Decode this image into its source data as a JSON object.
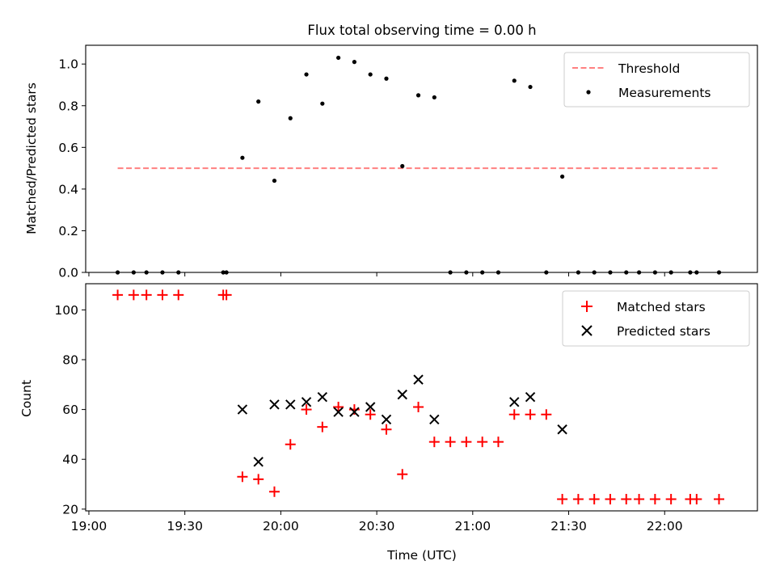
{
  "chart_data": [
    {
      "type": "scatter",
      "title": "Flux total observing time = 0.00 h",
      "ylabel": "Matched/Predicted stars",
      "xlabel": "",
      "ylim": [
        0,
        1.09
      ],
      "yticks": [
        "0.0",
        "0.2",
        "0.4",
        "0.6",
        "0.8",
        "1.0"
      ],
      "grid": false,
      "legend": "top-right",
      "threshold": {
        "name": "Threshold",
        "value": 0.5,
        "x_start": "19:09",
        "x_end": "22:17",
        "color": "#ff8080"
      },
      "series": [
        {
          "name": "Measurements",
          "color": "#000000",
          "points": [
            [
              "19:09",
              0.0
            ],
            [
              "19:14",
              0.0
            ],
            [
              "19:18",
              0.0
            ],
            [
              "19:23",
              0.0
            ],
            [
              "19:28",
              0.0
            ],
            [
              "19:42",
              0.0
            ],
            [
              "19:43",
              0.0
            ],
            [
              "19:48",
              0.55
            ],
            [
              "19:53",
              0.82
            ],
            [
              "19:58",
              0.44
            ],
            [
              "20:03",
              0.74
            ],
            [
              "20:08",
              0.95
            ],
            [
              "20:13",
              0.81
            ],
            [
              "20:18",
              1.03
            ],
            [
              "20:23",
              1.01
            ],
            [
              "20:28",
              0.95
            ],
            [
              "20:33",
              0.93
            ],
            [
              "20:38",
              0.51
            ],
            [
              "20:43",
              0.85
            ],
            [
              "20:48",
              0.84
            ],
            [
              "20:53",
              0.0
            ],
            [
              "20:58",
              0.0
            ],
            [
              "21:03",
              0.0
            ],
            [
              "21:08",
              0.0
            ],
            [
              "21:13",
              0.92
            ],
            [
              "21:18",
              0.89
            ],
            [
              "21:23",
              0.0
            ],
            [
              "21:28",
              0.46
            ],
            [
              "21:33",
              0.0
            ],
            [
              "21:38",
              0.0
            ],
            [
              "21:43",
              0.0
            ],
            [
              "21:48",
              0.0
            ],
            [
              "21:52",
              0.0
            ],
            [
              "21:57",
              0.0
            ],
            [
              "22:02",
              0.0
            ],
            [
              "22:08",
              0.0
            ],
            [
              "22:10",
              0.0
            ],
            [
              "22:17",
              0.0
            ]
          ]
        }
      ]
    },
    {
      "type": "scatter",
      "title": "",
      "ylabel": "Count",
      "xlabel": "Time (UTC)",
      "xticks": [
        "19:00",
        "19:30",
        "20:00",
        "20:30",
        "21:00",
        "21:30",
        "22:00"
      ],
      "xlim": [
        "18:59",
        "22:29"
      ],
      "ylim": [
        19.3,
        110.5
      ],
      "yticks": [
        "20",
        "40",
        "60",
        "80",
        "100"
      ],
      "grid": false,
      "legend": "top-right",
      "series": [
        {
          "name": "Matched stars",
          "marker": "plus",
          "color": "#ff0000",
          "points": [
            [
              "19:09",
              106
            ],
            [
              "19:14",
              106
            ],
            [
              "19:18",
              106
            ],
            [
              "19:23",
              106
            ],
            [
              "19:28",
              106
            ],
            [
              "19:42",
              106
            ],
            [
              "19:43",
              106
            ],
            [
              "19:48",
              33
            ],
            [
              "19:53",
              32
            ],
            [
              "19:58",
              27
            ],
            [
              "20:03",
              46
            ],
            [
              "20:08",
              60
            ],
            [
              "20:13",
              53
            ],
            [
              "20:18",
              61
            ],
            [
              "20:23",
              60
            ],
            [
              "20:28",
              58
            ],
            [
              "20:33",
              52
            ],
            [
              "20:38",
              34
            ],
            [
              "20:43",
              61
            ],
            [
              "20:48",
              47
            ],
            [
              "20:53",
              47
            ],
            [
              "20:58",
              47
            ],
            [
              "21:03",
              47
            ],
            [
              "21:08",
              47
            ],
            [
              "21:13",
              58
            ],
            [
              "21:18",
              58
            ],
            [
              "21:23",
              58
            ],
            [
              "21:28",
              24
            ],
            [
              "21:33",
              24
            ],
            [
              "21:38",
              24
            ],
            [
              "21:43",
              24
            ],
            [
              "21:48",
              24
            ],
            [
              "21:52",
              24
            ],
            [
              "21:57",
              24
            ],
            [
              "22:02",
              24
            ],
            [
              "22:08",
              24
            ],
            [
              "22:10",
              24
            ],
            [
              "22:17",
              24
            ]
          ]
        },
        {
          "name": "Predicted stars",
          "marker": "x",
          "color": "#000000",
          "points": [
            [
              "19:48",
              60
            ],
            [
              "19:53",
              39
            ],
            [
              "19:58",
              62
            ],
            [
              "20:03",
              62
            ],
            [
              "20:08",
              63
            ],
            [
              "20:13",
              65
            ],
            [
              "20:18",
              59
            ],
            [
              "20:23",
              59
            ],
            [
              "20:28",
              61
            ],
            [
              "20:33",
              56
            ],
            [
              "20:38",
              66
            ],
            [
              "20:43",
              72
            ],
            [
              "20:48",
              56
            ],
            [
              "21:13",
              63
            ],
            [
              "21:18",
              65
            ],
            [
              "21:28",
              52
            ]
          ]
        }
      ]
    }
  ]
}
